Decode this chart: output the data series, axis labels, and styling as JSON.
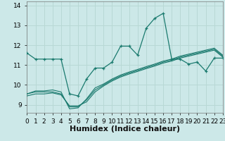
{
  "xlabel": "Humidex (Indice chaleur)",
  "bg_color": "#cce8e8",
  "grid_color": "#b8d8d5",
  "line_color": "#1a7a6e",
  "x_data": [
    0,
    1,
    2,
    3,
    4,
    5,
    6,
    7,
    8,
    9,
    10,
    11,
    12,
    13,
    14,
    15,
    16,
    17,
    18,
    19,
    20,
    21,
    22,
    23
  ],
  "main_line": [
    11.6,
    11.3,
    11.3,
    11.3,
    11.3,
    9.55,
    9.45,
    10.3,
    10.85,
    10.85,
    11.15,
    11.95,
    11.95,
    11.5,
    12.85,
    13.35,
    13.6,
    11.3,
    11.3,
    11.05,
    11.15,
    10.7,
    11.35,
    11.35
  ],
  "line2": [
    9.55,
    9.7,
    9.7,
    9.75,
    9.65,
    8.8,
    8.85,
    9.3,
    9.85,
    10.05,
    10.3,
    10.5,
    10.65,
    10.78,
    10.92,
    11.05,
    11.2,
    11.3,
    11.45,
    11.55,
    11.65,
    11.75,
    11.85,
    11.5
  ],
  "line3": [
    9.55,
    9.65,
    9.65,
    9.65,
    9.55,
    8.9,
    8.9,
    9.25,
    9.75,
    10.0,
    10.25,
    10.45,
    10.6,
    10.73,
    10.87,
    11.0,
    11.15,
    11.25,
    11.4,
    11.5,
    11.6,
    11.7,
    11.8,
    11.45
  ],
  "line4": [
    9.45,
    9.55,
    9.55,
    9.6,
    9.5,
    8.95,
    8.95,
    9.15,
    9.65,
    9.95,
    10.2,
    10.4,
    10.55,
    10.68,
    10.82,
    10.95,
    11.1,
    11.2,
    11.35,
    11.45,
    11.55,
    11.65,
    11.75,
    11.4
  ],
  "xlim": [
    0,
    23
  ],
  "ylim": [
    8.6,
    14.2
  ],
  "yticks": [
    9,
    10,
    11,
    12,
    13,
    14
  ],
  "xtick_labels": [
    "0",
    "1",
    "2",
    "3",
    "4",
    "5",
    "6",
    "7",
    "8",
    "9",
    "10",
    "11",
    "12",
    "13",
    "14",
    "15",
    "16",
    "17",
    "18",
    "19",
    "20",
    "21",
    "22",
    "23"
  ],
  "tick_fontsize": 6.5,
  "label_fontsize": 8
}
